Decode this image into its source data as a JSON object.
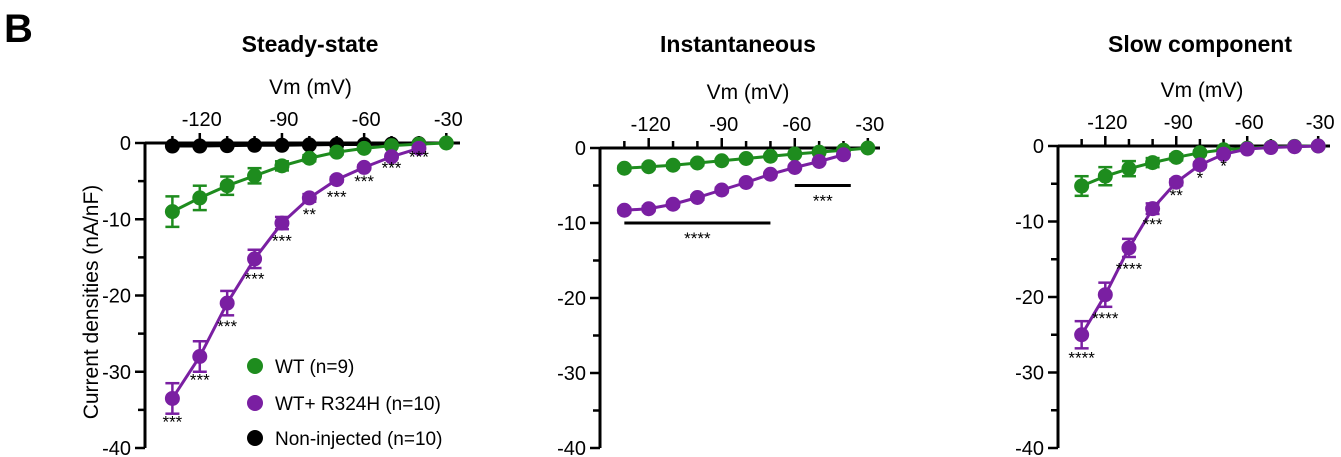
{
  "panel_letter": "B",
  "y_axis_label": "Current densities (nA/nF)",
  "colors": {
    "WT": "#1e8c1e",
    "WT+ R324H": "#7a1fa2",
    "Non-injected": "#000000",
    "axis": "#000000"
  },
  "legend": [
    {
      "label": "WT (n=9)",
      "color": "#1e8c1e"
    },
    {
      "label": "WT+ R324H (n=10)",
      "color": "#7a1fa2"
    },
    {
      "label": "Non-injected (n=10)",
      "color": "#000000"
    }
  ],
  "chart_data": [
    {
      "type": "line",
      "title": "Steady-state",
      "xlabel": "Vm (mV)",
      "ylabel": "Current densities (nA/nF)",
      "xlim": [
        -140,
        -25
      ],
      "ylim": [
        -40,
        0
      ],
      "x_ticks": [
        -120,
        -90,
        -60,
        -30
      ],
      "y_ticks": [
        0,
        -10,
        -20,
        -30,
        -40
      ],
      "x_tick_labels": [
        "-120",
        "-90",
        "-60",
        "-30"
      ],
      "y_tick_labels": [
        "0",
        "-10",
        "-20",
        "-30",
        "-40"
      ],
      "series": [
        {
          "name": "WT (n=9)",
          "color": "#1e8c1e",
          "x": [
            -130,
            -120,
            -110,
            -100,
            -90,
            -80,
            -70,
            -60,
            -50,
            -40,
            -30
          ],
          "y": [
            -9.0,
            -7.2,
            -5.6,
            -4.3,
            -3.0,
            -2.0,
            -1.2,
            -0.7,
            -0.35,
            -0.15,
            0
          ],
          "err": [
            2.0,
            1.6,
            1.2,
            1.0,
            0.6,
            0.4,
            0.3,
            0.2,
            0.1,
            0.05,
            0
          ]
        },
        {
          "name": "WT+ R324H (n=10)",
          "color": "#7a1fa2",
          "x": [
            -130,
            -120,
            -110,
            -100,
            -90,
            -80,
            -70,
            -60,
            -50,
            -40
          ],
          "y": [
            -33.5,
            -28.0,
            -21.0,
            -15.2,
            -10.5,
            -7.2,
            -4.8,
            -3.2,
            -1.8,
            -0.7
          ],
          "err": [
            2.0,
            2.0,
            1.6,
            1.2,
            0.8,
            0.5,
            0.3,
            0.25,
            0.2,
            0.1
          ]
        },
        {
          "name": "Non-injected (n=10)",
          "color": "#000000",
          "x": [
            -130,
            -120,
            -110,
            -100,
            -90,
            -80,
            -70,
            -60,
            -50,
            -40
          ],
          "y": [
            -0.4,
            -0.4,
            -0.35,
            -0.3,
            -0.3,
            -0.25,
            -0.2,
            -0.2,
            -0.15,
            -0.1
          ],
          "err": [
            0,
            0,
            0,
            0,
            0,
            0,
            0,
            0,
            0,
            0
          ]
        }
      ],
      "annotations": [
        {
          "text": "***",
          "x": -130,
          "y": -36.5
        },
        {
          "text": "***",
          "x": -120,
          "y": -31.0
        },
        {
          "text": "***",
          "x": -110,
          "y": -24.0
        },
        {
          "text": "***",
          "x": -100,
          "y": -17.8
        },
        {
          "text": "***",
          "x": -90,
          "y": -12.8
        },
        {
          "text": "**",
          "x": -80,
          "y": -9.3
        },
        {
          "text": "***",
          "x": -70,
          "y": -7.0
        },
        {
          "text": "***",
          "x": -60,
          "y": -5.0
        },
        {
          "text": "***",
          "x": -50,
          "y": -3.2
        },
        {
          "text": "***",
          "x": -40,
          "y": -1.8
        }
      ]
    },
    {
      "type": "line",
      "title": "Instantaneous",
      "xlabel": "Vm (mV)",
      "xlim": [
        -140,
        -25
      ],
      "ylim": [
        -40,
        0
      ],
      "x_ticks": [
        -120,
        -90,
        -60,
        -30
      ],
      "y_ticks": [
        0,
        -10,
        -20,
        -30,
        -40
      ],
      "x_tick_labels": [
        "-120",
        "-90",
        "-60",
        "-30"
      ],
      "y_tick_labels": [
        "0",
        "-10",
        "-20",
        "-30",
        "-40"
      ],
      "series": [
        {
          "name": "WT (n=9)",
          "color": "#1e8c1e",
          "x": [
            -130,
            -120,
            -110,
            -100,
            -90,
            -80,
            -70,
            -60,
            -50,
            -40,
            -30
          ],
          "y": [
            -2.7,
            -2.5,
            -2.3,
            -2.0,
            -1.7,
            -1.4,
            -1.1,
            -0.8,
            -0.55,
            -0.3,
            0
          ],
          "err": [
            0.3,
            0.3,
            0.3,
            0.3,
            0.2,
            0.2,
            0.2,
            0.1,
            0.1,
            0.1,
            0
          ]
        },
        {
          "name": "WT+ R324H (n=10)",
          "color": "#7a1fa2",
          "x": [
            -130,
            -120,
            -110,
            -100,
            -90,
            -80,
            -70,
            -60,
            -50,
            -40
          ],
          "y": [
            -8.3,
            -8.1,
            -7.5,
            -6.6,
            -5.6,
            -4.6,
            -3.5,
            -2.6,
            -1.8,
            -0.9
          ],
          "err": [
            0.3,
            0.3,
            0.3,
            0.3,
            0.3,
            0.2,
            0.2,
            0.2,
            0.1,
            0.1
          ]
        }
      ],
      "significance_bars": [
        {
          "text": "****",
          "x_start": -130,
          "x_end": -70,
          "y": -10.0
        },
        {
          "text": "***",
          "x_start": -60,
          "x_end": -37,
          "y": -5.0
        }
      ]
    },
    {
      "type": "line",
      "title": "Slow component",
      "xlabel": "Vm (mV)",
      "xlim": [
        -140,
        -25
      ],
      "ylim": [
        -40,
        0
      ],
      "x_ticks": [
        -120,
        -90,
        -60,
        -30
      ],
      "y_ticks": [
        0,
        -10,
        -20,
        -30,
        -40
      ],
      "x_tick_labels": [
        "-120",
        "-90",
        "-60",
        "-30"
      ],
      "y_tick_labels": [
        "0",
        "-10",
        "-20",
        "-30",
        "-40"
      ],
      "series": [
        {
          "name": "WT (n=9)",
          "color": "#1e8c1e",
          "x": [
            -130,
            -120,
            -110,
            -100,
            -90,
            -80,
            -70,
            -60,
            -50,
            -40,
            -30
          ],
          "y": [
            -5.3,
            -4.0,
            -3.0,
            -2.2,
            -1.5,
            -0.9,
            -0.5,
            -0.3,
            -0.15,
            -0.05,
            0
          ],
          "err": [
            1.3,
            1.2,
            1.0,
            0.6,
            0.4,
            0.3,
            0.2,
            0.1,
            0.05,
            0.05,
            0
          ]
        },
        {
          "name": "WT+ R324H (n=10)",
          "color": "#7a1fa2",
          "x": [
            -130,
            -120,
            -110,
            -100,
            -90,
            -80,
            -70,
            -60,
            -50,
            -40,
            -30
          ],
          "y": [
            -25.0,
            -19.7,
            -13.5,
            -8.3,
            -4.8,
            -2.5,
            -1.1,
            -0.4,
            -0.2,
            -0.1,
            0
          ],
          "err": [
            1.8,
            1.6,
            1.2,
            0.7,
            0.4,
            0.3,
            0.2,
            0.1,
            0.05,
            0.05,
            0
          ]
        }
      ],
      "annotations": [
        {
          "text": "****",
          "x": -130,
          "y": -28.0
        },
        {
          "text": "****",
          "x": -120,
          "y": -22.8
        },
        {
          "text": "****",
          "x": -110,
          "y": -16.2
        },
        {
          "text": "***",
          "x": -100,
          "y": -10.3
        },
        {
          "text": "**",
          "x": -90,
          "y": -6.5
        },
        {
          "text": "*",
          "x": -80,
          "y": -4.2
        },
        {
          "text": "*",
          "x": -70,
          "y": -2.6
        }
      ]
    }
  ]
}
